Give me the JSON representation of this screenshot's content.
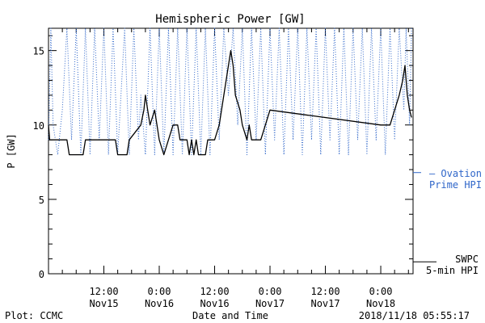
{
  "chart_data": {
    "type": "line",
    "title": "Hemispheric Power [GW]",
    "xlabel": "Date and Time",
    "ylabel": "P [GW]",
    "ylim": [
      0,
      16.5
    ],
    "yticks": [
      0,
      5,
      10,
      15
    ],
    "xlim": [
      "2018-11-15T00:00",
      "2018-11-18T07:00"
    ],
    "xticks": [
      {
        "time": "2018-11-15T12:00",
        "time_label": "12:00",
        "date_label": "Nov15"
      },
      {
        "time": "2018-11-16T00:00",
        "time_label": "0:00",
        "date_label": "Nov16"
      },
      {
        "time": "2018-11-16T12:00",
        "time_label": "12:00",
        "date_label": "Nov16"
      },
      {
        "time": "2018-11-17T00:00",
        "time_label": "0:00",
        "date_label": "Nov17"
      },
      {
        "time": "2018-11-17T12:00",
        "time_label": "12:00",
        "date_label": "Nov17"
      },
      {
        "time": "2018-11-18T00:00",
        "time_label": "0:00",
        "date_label": "Nov18"
      }
    ],
    "series": [
      {
        "name": "SWPC 5-min HPI",
        "color": "#000000",
        "style": "solid",
        "legend_lines": [
          "SWPC",
          "5-min HPI"
        ],
        "points": [
          [
            "2018-11-15T00:00",
            10
          ],
          [
            "2018-11-15T00:15",
            9
          ],
          [
            "2018-11-15T04:00",
            9
          ],
          [
            "2018-11-15T04:30",
            8
          ],
          [
            "2018-11-15T07:30",
            8
          ],
          [
            "2018-11-15T08:00",
            9
          ],
          [
            "2018-11-15T14:30",
            9
          ],
          [
            "2018-11-15T15:00",
            8
          ],
          [
            "2018-11-15T17:00",
            8
          ],
          [
            "2018-11-15T17:30",
            9
          ],
          [
            "2018-11-15T20:00",
            10
          ],
          [
            "2018-11-15T20:40",
            11
          ],
          [
            "2018-11-15T21:00",
            12
          ],
          [
            "2018-11-15T21:30",
            11
          ],
          [
            "2018-11-15T22:00",
            10
          ],
          [
            "2018-11-15T23:00",
            11
          ],
          [
            "2018-11-15T23:30",
            10
          ],
          [
            "2018-11-16T00:00",
            9
          ],
          [
            "2018-11-16T01:00",
            8
          ],
          [
            "2018-11-16T02:00",
            9
          ],
          [
            "2018-11-16T03:00",
            10
          ],
          [
            "2018-11-16T04:00",
            10
          ],
          [
            "2018-11-16T04:30",
            9
          ],
          [
            "2018-11-16T06:00",
            9
          ],
          [
            "2018-11-16T06:30",
            8
          ],
          [
            "2018-11-16T07:00",
            9
          ],
          [
            "2018-11-16T07:30",
            8
          ],
          [
            "2018-11-16T08:00",
            9
          ],
          [
            "2018-11-16T08:30",
            8
          ],
          [
            "2018-11-16T10:00",
            8
          ],
          [
            "2018-11-16T10:30",
            9
          ],
          [
            "2018-11-16T12:00",
            9
          ],
          [
            "2018-11-16T13:00",
            10
          ],
          [
            "2018-11-16T14:00",
            12
          ],
          [
            "2018-11-16T15:00",
            14
          ],
          [
            "2018-11-16T15:30",
            15
          ],
          [
            "2018-11-16T16:00",
            14
          ],
          [
            "2018-11-16T16:30",
            12
          ],
          [
            "2018-11-16T17:30",
            11
          ],
          [
            "2018-11-16T18:00",
            10
          ],
          [
            "2018-11-16T19:00",
            9
          ],
          [
            "2018-11-16T19:30",
            10
          ],
          [
            "2018-11-16T20:00",
            9
          ],
          [
            "2018-11-16T22:00",
            9
          ],
          [
            "2018-11-16T23:00",
            10
          ],
          [
            "2018-11-17T00:00",
            11
          ],
          [
            "2018-11-18T00:00",
            10
          ],
          [
            "2018-11-18T02:00",
            10
          ],
          [
            "2018-11-18T03:00",
            11
          ],
          [
            "2018-11-18T04:00",
            12
          ],
          [
            "2018-11-18T04:45",
            13
          ],
          [
            "2018-11-18T05:15",
            14
          ],
          [
            "2018-11-18T05:45",
            12
          ],
          [
            "2018-11-18T06:15",
            11
          ],
          [
            "2018-11-18T06:40",
            10.5
          ]
        ]
      },
      {
        "name": "Ovation Prime HPI",
        "color": "#2f66c9",
        "style": "dotted",
        "legend_lines": [
          "— Ovation",
          "Prime HPI"
        ],
        "points": [
          [
            "2018-11-15T00:00",
            9
          ],
          [
            "2018-11-15T00:30",
            16.5
          ],
          [
            "2018-11-15T01:00",
            10
          ],
          [
            "2018-11-15T02:00",
            8
          ],
          [
            "2018-11-15T03:00",
            11
          ],
          [
            "2018-11-15T04:00",
            16.5
          ],
          [
            "2018-11-15T05:00",
            9
          ],
          [
            "2018-11-15T06:00",
            16.5
          ],
          [
            "2018-11-15T07:00",
            8
          ],
          [
            "2018-11-15T08:00",
            16.5
          ],
          [
            "2018-11-15T09:00",
            8
          ],
          [
            "2018-11-15T10:00",
            16.5
          ],
          [
            "2018-11-15T11:00",
            9
          ],
          [
            "2018-11-15T12:00",
            16.5
          ],
          [
            "2018-11-15T13:00",
            8
          ],
          [
            "2018-11-15T14:00",
            16.5
          ],
          [
            "2018-11-15T15:00",
            8
          ],
          [
            "2018-11-15T16:30",
            16.5
          ],
          [
            "2018-11-15T17:30",
            8
          ],
          [
            "2018-11-15T18:30",
            16.5
          ],
          [
            "2018-11-15T19:30",
            9
          ],
          [
            "2018-11-15T20:00",
            12
          ],
          [
            "2018-11-15T21:00",
            8
          ],
          [
            "2018-11-15T22:00",
            16.5
          ],
          [
            "2018-11-15T23:00",
            8
          ],
          [
            "2018-11-16T00:00",
            16.5
          ],
          [
            "2018-11-16T01:00",
            8
          ],
          [
            "2018-11-16T02:00",
            16.5
          ],
          [
            "2018-11-16T03:00",
            8
          ],
          [
            "2018-11-16T04:00",
            16.5
          ],
          [
            "2018-11-16T05:00",
            8
          ],
          [
            "2018-11-16T06:00",
            16.5
          ],
          [
            "2018-11-16T07:00",
            8
          ],
          [
            "2018-11-16T08:00",
            16.5
          ],
          [
            "2018-11-16T09:00",
            8
          ],
          [
            "2018-11-16T10:00",
            16.5
          ],
          [
            "2018-11-16T11:00",
            8
          ],
          [
            "2018-11-16T12:00",
            16.5
          ],
          [
            "2018-11-16T13:00",
            9
          ],
          [
            "2018-11-16T14:00",
            16.5
          ],
          [
            "2018-11-16T15:00",
            12
          ],
          [
            "2018-11-16T16:00",
            16.5
          ],
          [
            "2018-11-16T17:00",
            10
          ],
          [
            "2018-11-16T18:00",
            16.5
          ],
          [
            "2018-11-16T19:00",
            8
          ],
          [
            "2018-11-16T20:00",
            16.5
          ],
          [
            "2018-11-16T21:00",
            9
          ],
          [
            "2018-11-16T22:00",
            16.5
          ],
          [
            "2018-11-16T23:00",
            8
          ],
          [
            "2018-11-17T00:00",
            16.5
          ],
          [
            "2018-11-17T01:00",
            9
          ],
          [
            "2018-11-17T02:00",
            16.5
          ],
          [
            "2018-11-17T03:00",
            8
          ],
          [
            "2018-11-17T04:00",
            16.5
          ],
          [
            "2018-11-17T05:00",
            9
          ],
          [
            "2018-11-17T06:00",
            16.5
          ],
          [
            "2018-11-17T07:00",
            8
          ],
          [
            "2018-11-17T08:00",
            16.5
          ],
          [
            "2018-11-17T09:00",
            9
          ],
          [
            "2018-11-17T10:00",
            16.5
          ],
          [
            "2018-11-17T11:00",
            8
          ],
          [
            "2018-11-17T12:00",
            16.5
          ],
          [
            "2018-11-17T13:00",
            9
          ],
          [
            "2018-11-17T14:00",
            16.5
          ],
          [
            "2018-11-17T15:00",
            8
          ],
          [
            "2018-11-17T16:00",
            16.5
          ],
          [
            "2018-11-17T17:00",
            8
          ],
          [
            "2018-11-17T18:00",
            16.5
          ],
          [
            "2018-11-17T19:00",
            9
          ],
          [
            "2018-11-17T20:00",
            16.5
          ],
          [
            "2018-11-17T21:00",
            8
          ],
          [
            "2018-11-17T22:00",
            16.5
          ],
          [
            "2018-11-17T23:00",
            9
          ],
          [
            "2018-11-18T00:00",
            16.5
          ],
          [
            "2018-11-18T01:00",
            8
          ],
          [
            "2018-11-18T02:00",
            16.5
          ],
          [
            "2018-11-18T03:00",
            9
          ],
          [
            "2018-11-18T04:00",
            16.5
          ],
          [
            "2018-11-18T05:00",
            11
          ],
          [
            "2018-11-18T05:30",
            16.5
          ],
          [
            "2018-11-18T06:15",
            10
          ],
          [
            "2018-11-18T06:40",
            16.5
          ]
        ]
      }
    ]
  },
  "footer": {
    "left": "Plot: CCMC",
    "right": "2018/11/18 05:55:17"
  },
  "colors": {
    "axis": "#000000",
    "ovation": "#2f66c9",
    "swpc": "#000000"
  }
}
